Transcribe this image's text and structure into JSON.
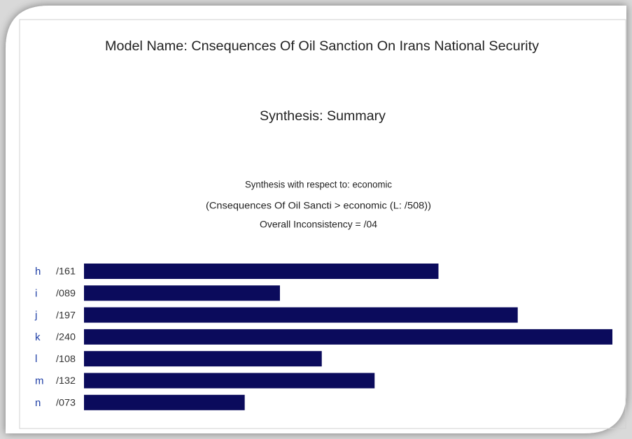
{
  "chart_data": {
    "type": "bar",
    "orientation": "horizontal",
    "title": "Model Name: Cnsequences Of Oil Sanction On Irans National Security",
    "subtitle": "Synthesis: Summary",
    "annotations": [
      "Synthesis with respect to: economic",
      "(Cnsequences Of Oil Sancti > economic (L: /508))",
      "Overall Inconsistency = /04"
    ],
    "categories": [
      "h",
      "i",
      "j",
      "k",
      "l",
      "m",
      "n"
    ],
    "values": [
      0.161,
      0.089,
      0.197,
      0.24,
      0.108,
      0.132,
      0.073
    ],
    "value_labels": [
      "/161",
      "/089",
      "/197",
      "/240",
      "/108",
      "/132",
      "/073"
    ],
    "color": "#0b0b5c"
  }
}
